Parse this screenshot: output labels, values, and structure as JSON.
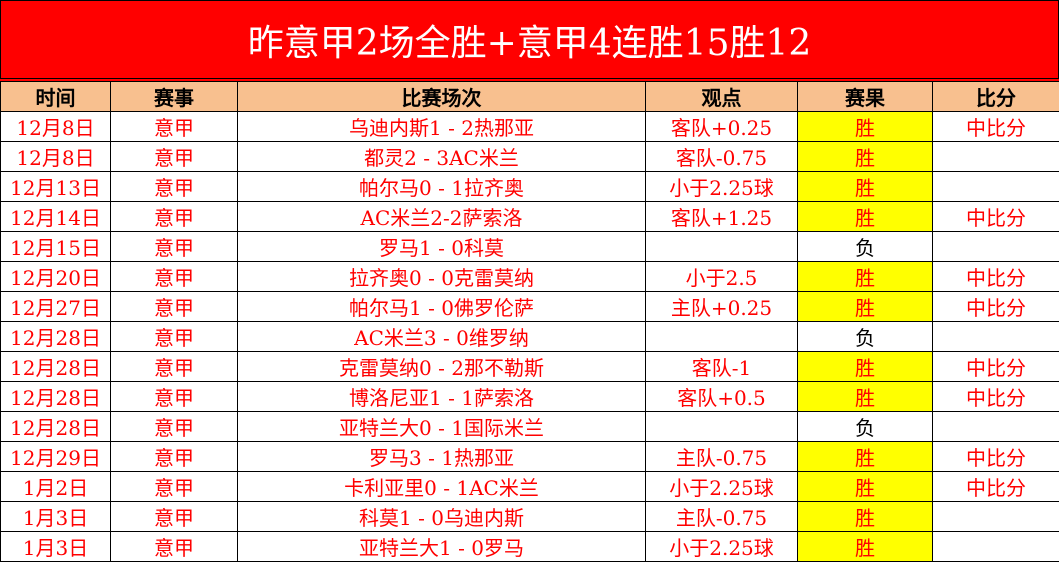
{
  "title": "昨意甲2场全胜+意甲4连胜15胜12",
  "columns": [
    "时间",
    "赛事",
    "比赛场次",
    "观点",
    "赛果",
    "比分"
  ],
  "colors": {
    "title_bg": "#ff0000",
    "header_bg": "#f8c08f",
    "win_bg": "#ffff00",
    "text": "#ff0000"
  },
  "rows": [
    {
      "date": "12月8日",
      "league": "意甲",
      "match": "乌迪内斯1 - 2热那亚",
      "pick": "客队+0.25",
      "result": "胜",
      "score": "中比分"
    },
    {
      "date": "12月8日",
      "league": "意甲",
      "match": "都灵2 - 3AC米兰",
      "pick": "客队-0.75",
      "result": "胜",
      "score": ""
    },
    {
      "date": "12月13日",
      "league": "意甲",
      "match": "帕尔马0 - 1拉齐奥",
      "pick": "小于2.25球",
      "result": "胜",
      "score": ""
    },
    {
      "date": "12月14日",
      "league": "意甲",
      "match": "AC米兰2-2萨索洛",
      "pick": "客队+1.25",
      "result": "胜",
      "score": "中比分"
    },
    {
      "date": "12月15日",
      "league": "意甲",
      "match": "罗马1 - 0科莫",
      "pick": "",
      "result": "负",
      "score": ""
    },
    {
      "date": "12月20日",
      "league": "意甲",
      "match": "拉齐奥0 - 0克雷莫纳",
      "pick": "小于2.5",
      "result": "胜",
      "score": "中比分"
    },
    {
      "date": "12月27日",
      "league": "意甲",
      "match": "帕尔马1 - 0佛罗伦萨",
      "pick": "主队+0.25",
      "result": "胜",
      "score": "中比分"
    },
    {
      "date": "12月28日",
      "league": "意甲",
      "match": "AC米兰3 - 0维罗纳",
      "pick": "",
      "result": "负",
      "score": ""
    },
    {
      "date": "12月28日",
      "league": "意甲",
      "match": "克雷莫纳0 - 2那不勒斯",
      "pick": "客队-1",
      "result": "胜",
      "score": "中比分"
    },
    {
      "date": "12月28日",
      "league": "意甲",
      "match": "博洛尼亚1 - 1萨索洛",
      "pick": "客队+0.5",
      "result": "胜",
      "score": "中比分"
    },
    {
      "date": "12月28日",
      "league": "意甲",
      "match": "亚特兰大0 - 1国际米兰",
      "pick": "",
      "result": "负",
      "score": ""
    },
    {
      "date": "12月29日",
      "league": "意甲",
      "match": "罗马3 - 1热那亚",
      "pick": "主队-0.75",
      "result": "胜",
      "score": "中比分"
    },
    {
      "date": "1月2日",
      "league": "意甲",
      "match": "卡利亚里0 - 1AC米兰",
      "pick": "小于2.25球",
      "result": "胜",
      "score": "中比分"
    },
    {
      "date": "1月3日",
      "league": "意甲",
      "match": "科莫1 - 0乌迪内斯",
      "pick": "主队-0.75",
      "result": "胜",
      "score": ""
    },
    {
      "date": "1月3日",
      "league": "意甲",
      "match": "亚特兰大1 - 0罗马",
      "pick": "小于2.25球",
      "result": "胜",
      "score": ""
    }
  ]
}
